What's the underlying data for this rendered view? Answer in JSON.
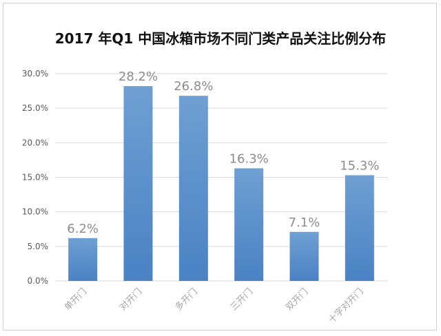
{
  "chart_data": {
    "type": "bar",
    "title": "2017 年Q1 中国冰箱市场不同门类产品关注比例分布",
    "categories": [
      "单开门",
      "对开门",
      "多开门",
      "三开门",
      "双开门",
      "十字对开门"
    ],
    "values": [
      6.2,
      28.2,
      26.8,
      16.3,
      7.1,
      15.3
    ],
    "data_labels": [
      "6.2%",
      "28.2%",
      "26.8%",
      "16.3%",
      "7.1%",
      "15.3%"
    ],
    "yticks": [
      "0.0%",
      "5.0%",
      "10.0%",
      "15.0%",
      "20.0%",
      "25.0%",
      "30.0%"
    ],
    "ylim": [
      0,
      30
    ],
    "ytick_step": 5,
    "grid": true,
    "legend": "none",
    "xlabel": "",
    "ylabel": "",
    "colors": {
      "bar_top": "#6f9fd3",
      "bar_bottom": "#4a82c4",
      "grid": "#d9d9d9"
    }
  }
}
